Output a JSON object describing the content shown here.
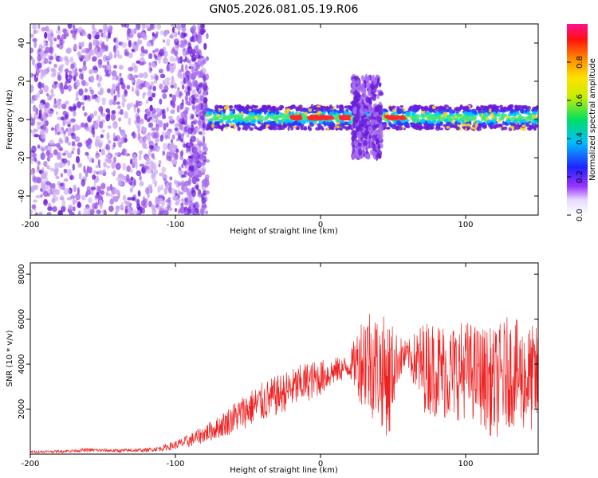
{
  "title": "GN05.2026.081.05.19.R06",
  "colors": {
    "snr_line": "#ee2222",
    "spectrogram_base": "#7722dd",
    "band_colors": [
      "#6a1bd9",
      "#2a3cff",
      "#00c8ff",
      "#3ee87a",
      "#ffd21f",
      "#ff2b2b"
    ]
  },
  "chart_data": [
    {
      "type": "heatmap",
      "xlabel": "Height of straight line (km)",
      "ylabel": "Frequency (Hz)",
      "xlim": [
        -200,
        150
      ],
      "ylim": [
        -50,
        50
      ],
      "xticks": [
        -200,
        -100,
        0,
        100
      ],
      "yticks": [
        -40,
        -20,
        0,
        20,
        40
      ],
      "colorbar": {
        "label": "Normalized spectral amplitude",
        "range": [
          0,
          1
        ],
        "ticks": [
          "0.0",
          "0.2",
          "0.4",
          "0.6",
          "0.8"
        ],
        "tick_values": [
          0.0,
          0.2,
          0.4,
          0.6,
          0.8
        ],
        "colormap": "rainbow (white-purple-blue-cyan-green-yellow-orange-red-magenta)"
      },
      "features": [
        {
          "x_range": [
            -200,
            -78
          ],
          "freq_range": [
            -50,
            50
          ],
          "amplitude": "low (0.0-0.2), scattered noise"
        },
        {
          "x_range": [
            -78,
            150
          ],
          "freq_center": 1,
          "band_halfwidth_hz": 6,
          "amplitude": "0.2-0.6 band along 0 Hz"
        },
        {
          "x_range": [
            -20,
            20
          ],
          "freq_center": 1,
          "amplitude": "up to ~1.0 (red peaks)"
        },
        {
          "x_range": [
            22,
            42
          ],
          "freq_range": [
            -20,
            22
          ],
          "amplitude": "0.1-0.3 burst"
        },
        {
          "x_range": [
            44,
            58
          ],
          "freq_center": 0,
          "amplitude": "~1.0 (red bar)"
        }
      ]
    },
    {
      "type": "line",
      "xlabel": "Height of straight line (km)",
      "ylabel": "SNR (10 * v/v)",
      "xlim": [
        -200,
        150
      ],
      "ylim": [
        0,
        8500
      ],
      "xticks": [
        -200,
        -100,
        0,
        100
      ],
      "yticks": [
        2000,
        4000,
        6000,
        8000
      ],
      "series": [
        {
          "x": [
            -200,
            -180,
            -160,
            -140,
            -120,
            -110,
            -100,
            -90,
            -80,
            -70,
            -60,
            -50,
            -40,
            -30,
            -20,
            -10,
            0,
            10,
            20,
            28,
            32,
            40,
            48,
            52,
            60,
            70,
            80,
            90,
            100,
            110,
            120,
            130,
            140,
            150
          ],
          "values": [
            100,
            120,
            180,
            150,
            180,
            250,
            400,
            600,
            900,
            1200,
            1600,
            2000,
            2300,
            2600,
            2900,
            3200,
            3400,
            3700,
            3900,
            4200,
            4300,
            3800,
            3300,
            4200,
            4400,
            3900,
            3800,
            3600,
            3800,
            3500,
            3100,
            3700,
            3400,
            3300
          ],
          "noise_amplitude": [
            50,
            60,
            80,
            80,
            80,
            120,
            200,
            300,
            400,
            500,
            700,
            800,
            900,
            900,
            900,
            900,
            800,
            600,
            500,
            2000,
            2600,
            2400,
            2800,
            1200,
            600,
            2000,
            2200,
            2200,
            2200,
            2200,
            2500,
            2500,
            2400,
            2400
          ]
        }
      ]
    }
  ]
}
